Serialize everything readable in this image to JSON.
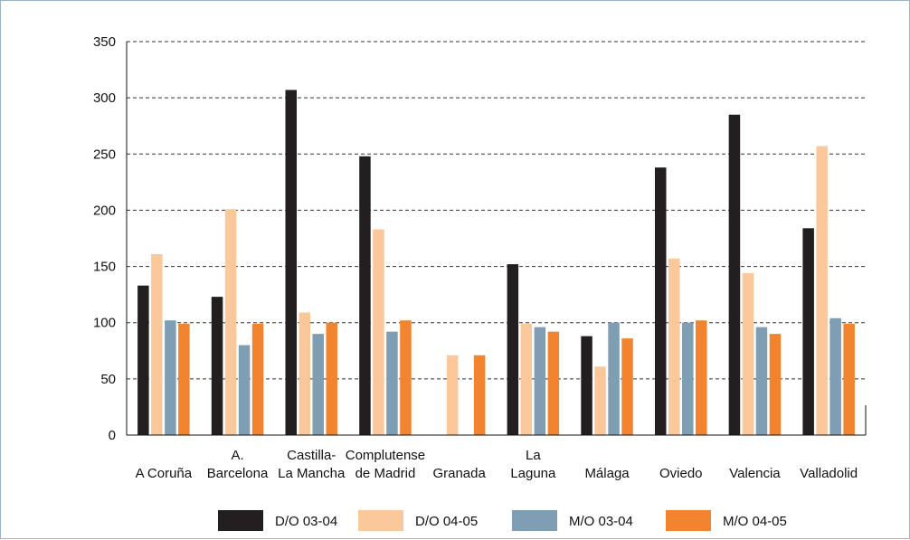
{
  "chart_data": {
    "type": "bar",
    "categories": [
      [
        "A Coruña"
      ],
      [
        "A.",
        "Barcelona"
      ],
      [
        "Castilla-",
        "La Mancha"
      ],
      [
        "Complutense",
        "de Madrid"
      ],
      [
        "Granada"
      ],
      [
        "La",
        "Laguna"
      ],
      [
        "Málaga"
      ],
      [
        "Oviedo"
      ],
      [
        "Valencia"
      ],
      [
        "Valladolid"
      ]
    ],
    "series": [
      {
        "name": "D/O 03-04",
        "color": "#231f20",
        "values": [
          133,
          123,
          307,
          248,
          null,
          152,
          88,
          238,
          285,
          184
        ]
      },
      {
        "name": "D/O 04-05",
        "color": "#fbc89c",
        "values": [
          161,
          201,
          109,
          183,
          71,
          99,
          61,
          157,
          144,
          257
        ]
      },
      {
        "name": "M/O 03-04",
        "color": "#7f9db3",
        "values": [
          102,
          80,
          90,
          92,
          null,
          96,
          100,
          100,
          96,
          104
        ]
      },
      {
        "name": "M/O 04-05",
        "color": "#f2842f",
        "values": [
          99,
          99,
          100,
          102,
          71,
          92,
          86,
          102,
          90,
          99
        ]
      }
    ],
    "y_ticks": [
      0,
      50,
      100,
      150,
      200,
      250,
      300,
      350
    ],
    "ylim": [
      0,
      350
    ],
    "grid": "horizontal dashed",
    "legend_position": "bottom"
  }
}
